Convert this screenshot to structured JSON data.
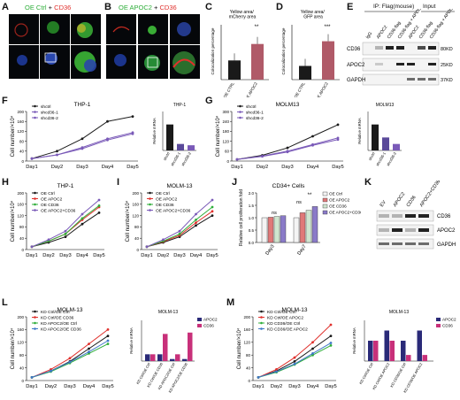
{
  "panels": {
    "A": {
      "letter": "A",
      "title_left": "OE Ctrl",
      "title_plus": " + ",
      "title_right": "CD36"
    },
    "B": {
      "letter": "B",
      "title_left": "OE APOC2",
      "title_plus": " + ",
      "title_right": "CD36"
    },
    "C": {
      "letter": "C",
      "ylabel": "Colocalization percentage",
      "note": "Yellow area/\nmCherry area",
      "categories": [
        "OE CTRL",
        "OE APOC2"
      ],
      "values": [
        0.07,
        0.13
      ],
      "significance": "**"
    },
    "D": {
      "letter": "D",
      "ylabel": "Colocalization percentage",
      "note": "Yellow area/\nGFP area",
      "categories": [
        "OE CTRL",
        "OE APOC2"
      ],
      "values": [
        0.05,
        0.14
      ],
      "significance": "***"
    },
    "E": {
      "letter": "E",
      "group_left": "IP: Flag(mouse)",
      "group_right": "Input",
      "lanes": [
        "IgG",
        "APOC2",
        "CD36-flag",
        "CD36-flag + APOC2",
        "APOC2",
        "CD36-flag",
        "CD36-flag + APOC2"
      ],
      "rows": [
        "CD36",
        "APOC2",
        "GAPDH"
      ],
      "sizes": [
        "80KD",
        "25KD",
        "37KD"
      ]
    },
    "F": {
      "letter": "F",
      "title": "THP-1",
      "inset_title": "THP-1",
      "series": [
        "shctrl",
        "shcd36-1",
        "shcd36-2"
      ]
    },
    "G": {
      "letter": "G",
      "title": "MOLM13",
      "inset_title": "MOLM13",
      "series": [
        "shctrl",
        "shcd36-1",
        "shcd36-2"
      ]
    },
    "H": {
      "letter": "H",
      "title": "THP-1",
      "series": [
        "OE Ctrl",
        "OE APOC2",
        "OE CD36",
        "OE APOC2+CD36"
      ]
    },
    "I": {
      "letter": "I",
      "title": "MOLM-13",
      "series": [
        "OE Ctrl",
        "OE APOC2",
        "OE CD36",
        "OE APOC2+CD36"
      ]
    },
    "J": {
      "letter": "J",
      "title": "CD34+ Cells",
      "ylabel": "Relative cell proliferation fold",
      "groups": [
        "Day3",
        "Day7"
      ],
      "series": [
        "OE Ctrl",
        "OE APOC2",
        "OE CD36",
        "OE APOC2+CD36"
      ],
      "ns": "ns",
      "star": "**"
    },
    "K": {
      "letter": "K",
      "lanes": [
        "EV",
        "APOC2",
        "CD36",
        "APOC2+CD36"
      ],
      "rows": [
        "CD36",
        "APOC2",
        "GAPDH"
      ]
    },
    "L": {
      "letter": "L",
      "title": "MOLM-13",
      "inset_title": "MOLM-13",
      "series": [
        "KD Ctrl/OE Ctrl",
        "KD Ctrl/OE CD36",
        "KD APOC2/OE Ctrl",
        "KD APOC2/OE CD36"
      ],
      "inset_legend": [
        "APOC2",
        "CD36"
      ]
    },
    "M": {
      "letter": "M",
      "title": "MOLM-13",
      "inset_title": "MOLM-13",
      "series": [
        "KD Ctrl/OE Ctrl",
        "KD Ctrl/OE APOC2",
        "KD CD36/OE Ctrl",
        "KD CD36/OE APOC2"
      ],
      "inset_legend": [
        "APOC2",
        "CD36"
      ]
    }
  },
  "common": {
    "days": [
      "Day1",
      "Day2",
      "Day3",
      "Day4",
      "Day5"
    ],
    "cell_ylabel": "Cell number/×10⁴",
    "rel_mrna": "Relative mRNA"
  },
  "colors": {
    "green": "#2fae3a",
    "red": "#e0302c",
    "dark": "#1a1a1a",
    "purple": "#7a5ab8",
    "pink": "#d2357a",
    "blue": "#3f78c8",
    "gray": "#777777",
    "navy": "#2a2a78",
    "magenta": "#c8307a"
  },
  "chart_data": [
    {
      "panel": "F",
      "type": "line",
      "x": [
        "Day1",
        "Day2",
        "Day3",
        "Day4",
        "Day5"
      ],
      "ylim": [
        0,
        200
      ],
      "series": [
        {
          "name": "shctrl",
          "values": [
            10,
            40,
            90,
            160,
            180
          ]
        },
        {
          "name": "shcd36-1",
          "values": [
            10,
            25,
            55,
            90,
            115
          ]
        },
        {
          "name": "shcd36-2",
          "values": [
            10,
            25,
            50,
            85,
            110
          ]
        }
      ]
    },
    {
      "panel": "F-inset",
      "type": "bar",
      "categories": [
        "shctrl",
        "shcd36-1",
        "shcd36-2"
      ],
      "values": [
        1.0,
        0.25,
        0.2
      ],
      "ylim": [
        0,
        1.5
      ]
    },
    {
      "panel": "G",
      "type": "line",
      "x": [
        "Day1",
        "Day2",
        "Day3",
        "Day4",
        "Day5"
      ],
      "ylim": [
        0,
        300
      ],
      "series": [
        {
          "name": "shctrl",
          "values": [
            10,
            35,
            80,
            150,
            220
          ]
        },
        {
          "name": "shcd36-1",
          "values": [
            10,
            30,
            60,
            100,
            140
          ]
        },
        {
          "name": "shcd36-2",
          "values": [
            10,
            28,
            55,
            95,
            130
          ]
        }
      ]
    },
    {
      "panel": "G-inset",
      "type": "bar",
      "categories": [
        "shctrl",
        "shcd36-1",
        "shcd36-2"
      ],
      "values": [
        1.0,
        0.5,
        0.25
      ],
      "ylim": [
        0,
        1.5
      ]
    },
    {
      "panel": "H",
      "type": "line",
      "x": [
        "Day1",
        "Day2",
        "Day3",
        "Day4",
        "Day5"
      ],
      "ylim": [
        0,
        200
      ],
      "series": [
        {
          "name": "OE Ctrl",
          "values": [
            10,
            25,
            45,
            90,
            130
          ]
        },
        {
          "name": "OE APOC2",
          "values": [
            10,
            30,
            55,
            105,
            150
          ]
        },
        {
          "name": "OE CD36",
          "values": [
            10,
            30,
            55,
            110,
            155
          ]
        },
        {
          "name": "OE APOC2+CD36",
          "values": [
            10,
            35,
            65,
            125,
            175
          ]
        }
      ]
    },
    {
      "panel": "I",
      "type": "line",
      "x": [
        "Day1",
        "Day2",
        "Day3",
        "Day4",
        "Day5"
      ],
      "ylim": [
        0,
        200
      ],
      "series": [
        {
          "name": "OE Ctrl",
          "values": [
            10,
            25,
            45,
            85,
            120
          ]
        },
        {
          "name": "OE APOC2",
          "values": [
            10,
            28,
            50,
            95,
            135
          ]
        },
        {
          "name": "OE CD36",
          "values": [
            10,
            30,
            55,
            105,
            150
          ]
        },
        {
          "name": "OE APOC2+CD36",
          "values": [
            10,
            35,
            65,
            125,
            175
          ]
        }
      ]
    },
    {
      "panel": "J",
      "type": "bar",
      "categories": [
        "Day3",
        "Day7"
      ],
      "ylim": [
        0,
        2.0
      ],
      "series": [
        {
          "name": "OE Ctrl",
          "values": [
            1.0,
            1.0
          ]
        },
        {
          "name": "OE APOC2",
          "values": [
            1.02,
            1.2
          ]
        },
        {
          "name": "OE CD36",
          "values": [
            1.05,
            1.3
          ]
        },
        {
          "name": "OE APOC2+CD36",
          "values": [
            1.08,
            1.45
          ]
        }
      ]
    },
    {
      "panel": "L",
      "type": "line",
      "x": [
        "Day1",
        "Day2",
        "Day3",
        "Day4",
        "Day5"
      ],
      "ylim": [
        0,
        200
      ],
      "series": [
        {
          "name": "KD Ctrl/OE Ctrl",
          "values": [
            10,
            30,
            60,
            100,
            140
          ]
        },
        {
          "name": "KD Ctrl/OE CD36",
          "values": [
            10,
            35,
            70,
            115,
            160
          ]
        },
        {
          "name": "KD APOC2/OE Ctrl",
          "values": [
            10,
            28,
            55,
            85,
            115
          ]
        },
        {
          "name": "KD APOC2/OE CD36",
          "values": [
            10,
            30,
            58,
            90,
            125
          ]
        }
      ]
    },
    {
      "panel": "L-inset",
      "type": "bar",
      "categories": [
        "KD Ctrl/OE Ctrl",
        "KD Ctrl/OE CD36",
        "KD APOC2/OE Ctrl",
        "KD APOC2/OE CD36"
      ],
      "ylim": [
        0,
        6
      ],
      "series": [
        {
          "name": "APOC2",
          "values": [
            1.0,
            1.0,
            0.3,
            0.3
          ]
        },
        {
          "name": "CD36",
          "values": [
            1.0,
            4.0,
            1.0,
            4.2
          ]
        }
      ]
    },
    {
      "panel": "M",
      "type": "line",
      "x": [
        "Day1",
        "Day2",
        "Day3",
        "Day4",
        "Day5"
      ],
      "ylim": [
        0,
        200
      ],
      "series": [
        {
          "name": "KD Ctrl/OE Ctrl",
          "values": [
            10,
            30,
            60,
            100,
            140
          ]
        },
        {
          "name": "KD Ctrl/OE APOC2",
          "values": [
            10,
            35,
            72,
            120,
            175
          ]
        },
        {
          "name": "KD CD36/OE Ctrl",
          "values": [
            10,
            26,
            50,
            80,
            110
          ]
        },
        {
          "name": "KD CD36/OE APOC2",
          "values": [
            10,
            28,
            52,
            85,
            118
          ]
        }
      ]
    },
    {
      "panel": "M-inset",
      "type": "bar",
      "categories": [
        "KD Ctrl/OE Ctrl",
        "KD Ctrl/OE APOC2",
        "KD CD36/OE Ctrl",
        "KD CD36/OE APOC2"
      ],
      "ylim": [
        0,
        2.0
      ],
      "series": [
        {
          "name": "APOC2",
          "values": [
            1.0,
            1.5,
            1.0,
            1.5
          ]
        },
        {
          "name": "CD36",
          "values": [
            1.0,
            1.0,
            0.3,
            0.3
          ]
        }
      ]
    }
  ]
}
